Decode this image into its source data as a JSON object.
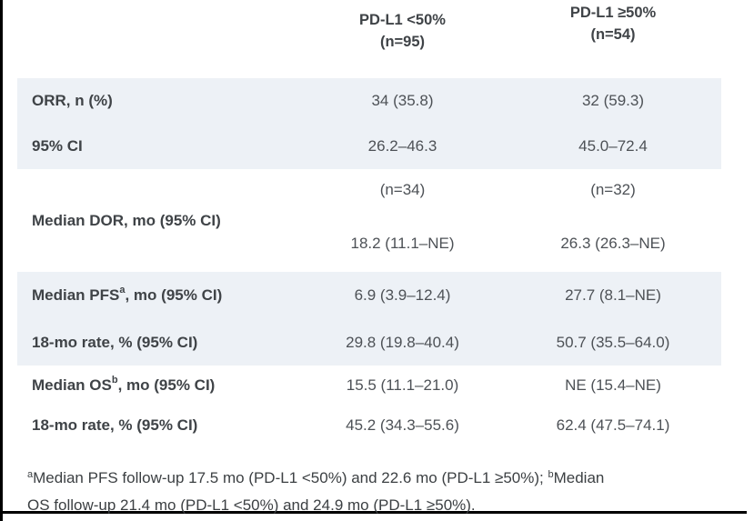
{
  "colors": {
    "shaded_row_bg": "#edf1f6",
    "label_text": "#3f4347",
    "value_text": "#4d5156",
    "frame_border": "#000000"
  },
  "header": {
    "col1": {
      "line1": "PD-L1 <50%",
      "line2": "(n=95)"
    },
    "col2": {
      "line1": "PD-L1 ≥50%",
      "line2": "(n=54)"
    }
  },
  "rows": {
    "orr": {
      "label": "ORR, n (%)",
      "v1": "34 (35.8)",
      "v2": "32 (59.3)"
    },
    "ci": {
      "label": "95% CI",
      "v1": "26.2–46.3",
      "v2": "45.0–72.4"
    },
    "dor": {
      "label": "Median DOR, mo (95% CI)",
      "n1": "(n=34)",
      "n2": "(n=32)",
      "v1": "18.2 (11.1–NE)",
      "v2": "26.3 (26.3–NE)"
    },
    "pfs": {
      "label_pre": "Median PFS",
      "label_sup": "a",
      "label_post": ", mo (95% CI)",
      "v1": "6.9 (3.9–12.4)",
      "v2": "27.7 (8.1–NE)"
    },
    "pfs_rate": {
      "label": "18-mo rate, % (95% CI)",
      "v1": "29.8 (19.8–40.4)",
      "v2": "50.7 (35.5–64.0)"
    },
    "os": {
      "label_pre": "Median OS",
      "label_sup": "b",
      "label_post": ", mo (95% CI)",
      "v1": "15.5 (11.1–21.0)",
      "v2": "NE (15.4–NE)"
    },
    "os_rate": {
      "label": "18-mo rate, % (95% CI)",
      "v1": "45.2 (34.3–55.6)",
      "v2": "62.4 (47.5–74.1)"
    }
  },
  "footnote": {
    "sup_a": "a",
    "line1_a": "Median PFS follow-up 17.5 mo (PD-L1 <50%) and 22.6 mo (PD-L1 ≥50%); ",
    "sup_b": "b",
    "line1_b": "Median",
    "line2": "OS follow-up 21.4 mo (PD-L1 <50%) and 24.9 mo (PD-L1 ≥50%)."
  }
}
